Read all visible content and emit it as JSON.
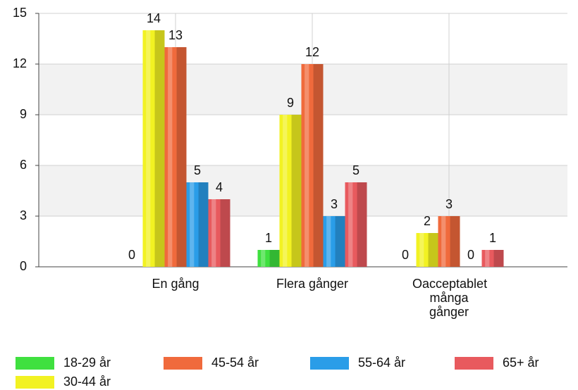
{
  "chart_data": {
    "type": "bar",
    "categories": [
      "En gång",
      "Flera gånger",
      "Oacceptablet många gånger"
    ],
    "series": [
      {
        "name": "18-29 år",
        "color": "#3fe03f",
        "values": [
          0,
          1,
          0
        ]
      },
      {
        "name": "30-44 år",
        "color": "#f2f222",
        "values": [
          14,
          9,
          2
        ]
      },
      {
        "name": "45-54 år",
        "color": "#f06a3c",
        "values": [
          13,
          12,
          3
        ]
      },
      {
        "name": "55-64 år",
        "color": "#2a9de8",
        "values": [
          5,
          3,
          0
        ]
      },
      {
        "name": "65+ år",
        "color": "#e85a5e",
        "values": [
          4,
          5,
          1
        ]
      }
    ],
    "ylim": [
      0,
      15
    ],
    "yticks": [
      0,
      3,
      6,
      9,
      12,
      15
    ],
    "grid": true
  }
}
